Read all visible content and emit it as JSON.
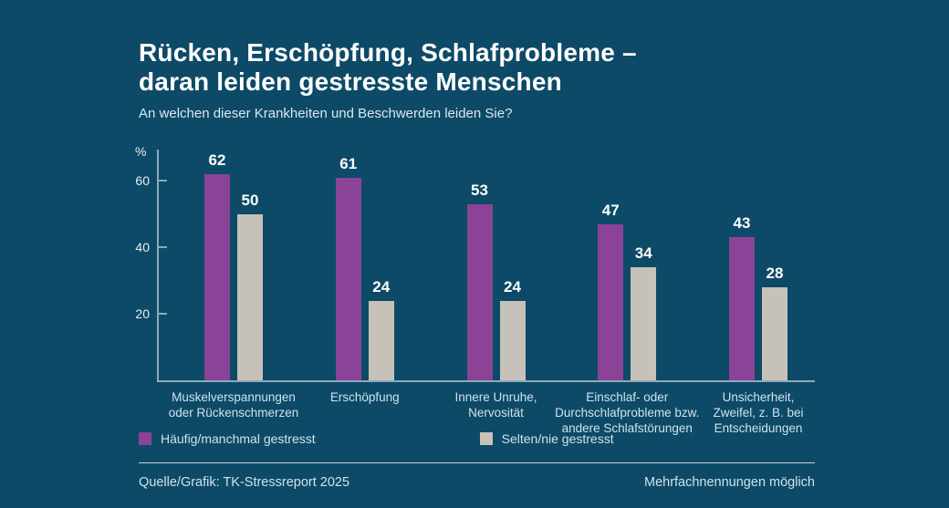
{
  "header": {
    "title_line1": "Rücken, Erschöpfung, Schlafprobleme –",
    "title_line2": "daran leiden gestresste Menschen",
    "subtitle": "An welchen dieser Krankheiten und Beschwerden leiden Sie?"
  },
  "chart_data": {
    "type": "bar",
    "unit_label": "%",
    "categories": [
      "Muskelverspannungen\noder Rückenschmerzen",
      "Erschöpfung",
      "Innere Unruhe,\nNervosität",
      "Einschlaf- oder\nDurchschlafprobleme bzw.\nandere Schlafstörungen",
      "Unsicherheit,\nZweifel, z. B. bei\nEntscheidungen"
    ],
    "series": [
      {
        "name": "Häufig/manchmal gestresst",
        "color": "#8a4397",
        "values": [
          62,
          61,
          53,
          47,
          43
        ]
      },
      {
        "name": "Selten/nie gestresst",
        "color": "#c6c2ba",
        "values": [
          50,
          24,
          24,
          34,
          28
        ]
      }
    ],
    "yticks": [
      20,
      40,
      60
    ],
    "ylim": [
      0,
      69
    ],
    "grid": false,
    "value_labels": true,
    "legend_position": "bottom-left"
  },
  "footer": {
    "source": "Quelle/Grafik: TK-Stressreport 2025",
    "note": "Mehrfachnennungen möglich"
  },
  "colors": {
    "background": "#0d4a67",
    "title_text": "#ffffff",
    "light_text": "#cfe2ec",
    "axis": "#8fa9b8",
    "value_text": "#ffffff"
  }
}
